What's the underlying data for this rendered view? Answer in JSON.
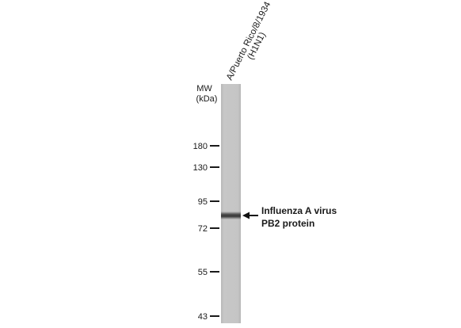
{
  "lane_label_line1": "A/Puerto Rico/8/1934",
  "lane_label_line2": "(H1N1)",
  "mw_label_line1": "MW",
  "mw_label_line2": "(kDa)",
  "markers": [
    "180",
    "130",
    "95",
    "72",
    "55",
    "43"
  ],
  "band_label_line1": "Influenza A virus",
  "band_label_line2": "PB2 protein",
  "colors": {
    "lane": "#c4c4c4",
    "band": "#3a3a3a",
    "text": "#1a1a1a"
  }
}
